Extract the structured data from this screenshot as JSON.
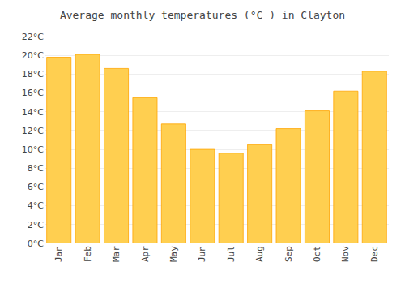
{
  "chart_data": {
    "type": "bar",
    "title": "Average monthly temperatures (°C ) in Clayton",
    "categories": [
      "Jan",
      "Feb",
      "Mar",
      "Apr",
      "May",
      "Jun",
      "Jul",
      "Aug",
      "Sep",
      "Oct",
      "Nov",
      "Dec"
    ],
    "values": [
      19.8,
      20.1,
      18.6,
      15.5,
      12.7,
      10.0,
      9.6,
      10.5,
      12.2,
      14.1,
      16.2,
      18.3
    ],
    "color": "#FFCF50",
    "ylim": [
      0,
      22
    ],
    "yticks": [
      {
        "value": 0,
        "label": "0°C"
      },
      {
        "value": 2,
        "label": "2°C"
      },
      {
        "value": 4,
        "label": "4°C"
      },
      {
        "value": 6,
        "label": "6°C"
      },
      {
        "value": 8,
        "label": "8°C"
      },
      {
        "value": 10,
        "label": "10°C"
      },
      {
        "value": 12,
        "label": "12°C"
      },
      {
        "value": 14,
        "label": "14°C"
      },
      {
        "value": 16,
        "label": "16°C"
      },
      {
        "value": 18,
        "label": "18°C"
      },
      {
        "value": 20,
        "label": "20°C"
      },
      {
        "value": 22,
        "label": "22°C"
      }
    ],
    "grid": true
  }
}
